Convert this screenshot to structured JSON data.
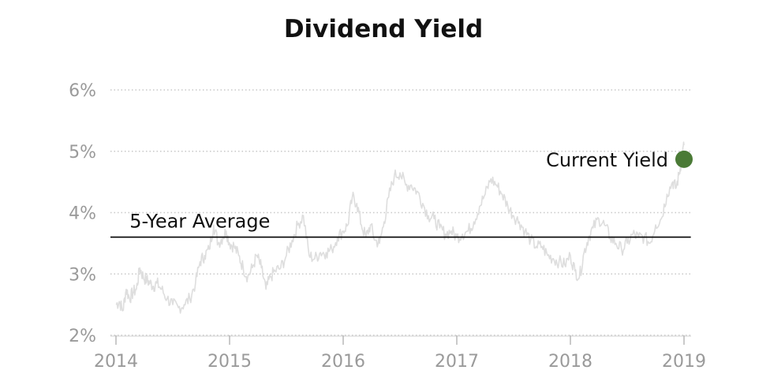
{
  "chart_data": {
    "type": "line",
    "title": "Dividend Yield",
    "xlabel": "",
    "ylabel": "",
    "xlim": [
      2014,
      2019
    ],
    "ylim": [
      2,
      6
    ],
    "x_ticks": [
      {
        "value": 2014,
        "label": "2014"
      },
      {
        "value": 2015,
        "label": "2015"
      },
      {
        "value": 2016,
        "label": "2016"
      },
      {
        "value": 2017,
        "label": "2017"
      },
      {
        "value": 2018,
        "label": "2018"
      },
      {
        "value": 2019,
        "label": "2019"
      }
    ],
    "y_ticks": [
      {
        "value": 2,
        "label": "2%"
      },
      {
        "value": 3,
        "label": "3%"
      },
      {
        "value": 4,
        "label": "4%"
      },
      {
        "value": 5,
        "label": "5%"
      },
      {
        "value": 6,
        "label": "6%"
      }
    ],
    "grid": "horizontal dotted",
    "series": [
      {
        "color": "#dedede",
        "x": [
          2014.0,
          2014.03,
          2014.06,
          2014.09,
          2014.12,
          2014.15,
          2014.18,
          2014.21,
          2014.24,
          2014.27,
          2014.3,
          2014.33,
          2014.36,
          2014.4,
          2014.45,
          2014.5,
          2014.55,
          2014.6,
          2014.65,
          2014.7,
          2014.74,
          2014.78,
          2014.82,
          2014.86,
          2014.9,
          2014.94,
          2014.97,
          2015.0,
          2015.04,
          2015.08,
          2015.12,
          2015.16,
          2015.2,
          2015.24,
          2015.28,
          2015.32,
          2015.36,
          2015.4,
          2015.45,
          2015.5,
          2015.55,
          2015.6,
          2015.65,
          2015.7,
          2015.75,
          2015.8,
          2015.85,
          2015.9,
          2015.95,
          2016.0,
          2016.04,
          2016.08,
          2016.12,
          2016.16,
          2016.2,
          2016.24,
          2016.28,
          2016.32,
          2016.36,
          2016.4,
          2016.45,
          2016.5,
          2016.55,
          2016.6,
          2016.65,
          2016.7,
          2016.75,
          2016.8,
          2016.85,
          2016.9,
          2016.95,
          2017.0,
          2017.05,
          2017.1,
          2017.15,
          2017.2,
          2017.25,
          2017.3,
          2017.35,
          2017.4,
          2017.45,
          2017.5,
          2017.55,
          2017.6,
          2017.65,
          2017.7,
          2017.75,
          2017.8,
          2017.85,
          2017.9,
          2017.95,
          2018.0,
          2018.04,
          2018.08,
          2018.12,
          2018.16,
          2018.2,
          2018.25,
          2018.3,
          2018.35,
          2018.4,
          2018.45,
          2018.5,
          2018.55,
          2018.6,
          2018.65,
          2018.7,
          2018.75,
          2018.8,
          2018.85,
          2018.9,
          2018.93,
          2018.96,
          2018.98,
          2019.0
        ],
        "y": [
          2.5,
          2.55,
          2.4,
          2.75,
          2.6,
          2.7,
          2.75,
          3.1,
          2.95,
          2.9,
          2.85,
          2.8,
          2.85,
          2.75,
          2.6,
          2.5,
          2.45,
          2.5,
          2.6,
          2.85,
          3.2,
          3.3,
          3.4,
          3.8,
          3.5,
          3.6,
          3.7,
          3.5,
          3.45,
          3.3,
          3.1,
          2.95,
          3.1,
          3.3,
          3.1,
          2.75,
          2.95,
          3.05,
          3.1,
          3.3,
          3.55,
          3.8,
          3.95,
          3.3,
          3.25,
          3.35,
          3.35,
          3.4,
          3.6,
          3.7,
          3.8,
          4.25,
          4.15,
          3.8,
          3.6,
          3.8,
          3.55,
          3.5,
          3.85,
          4.25,
          4.6,
          4.65,
          4.45,
          4.45,
          4.35,
          4.15,
          3.95,
          3.9,
          3.75,
          3.65,
          3.7,
          3.6,
          3.65,
          3.7,
          3.85,
          4.1,
          4.3,
          4.55,
          4.45,
          4.3,
          4.1,
          3.95,
          3.85,
          3.7,
          3.55,
          3.45,
          3.45,
          3.3,
          3.25,
          3.2,
          3.15,
          3.3,
          3.05,
          2.95,
          3.35,
          3.6,
          3.75,
          3.9,
          3.8,
          3.6,
          3.5,
          3.4,
          3.5,
          3.65,
          3.6,
          3.6,
          3.5,
          3.8,
          3.9,
          4.3,
          4.5,
          4.4,
          4.65,
          4.9,
          5.1
        ]
      },
      {
        "name": "5-Year Average",
        "color": "#000000",
        "x": [
          2014.0,
          2019.06
        ],
        "y": [
          3.6,
          3.6
        ]
      }
    ],
    "annotations": [
      {
        "text": "5-Year Average",
        "x": 2014.12,
        "y": 3.6
      },
      {
        "text": "Current Yield",
        "x": 2019.0,
        "y": 4.87,
        "marker_color": "#4a7a36"
      }
    ]
  }
}
